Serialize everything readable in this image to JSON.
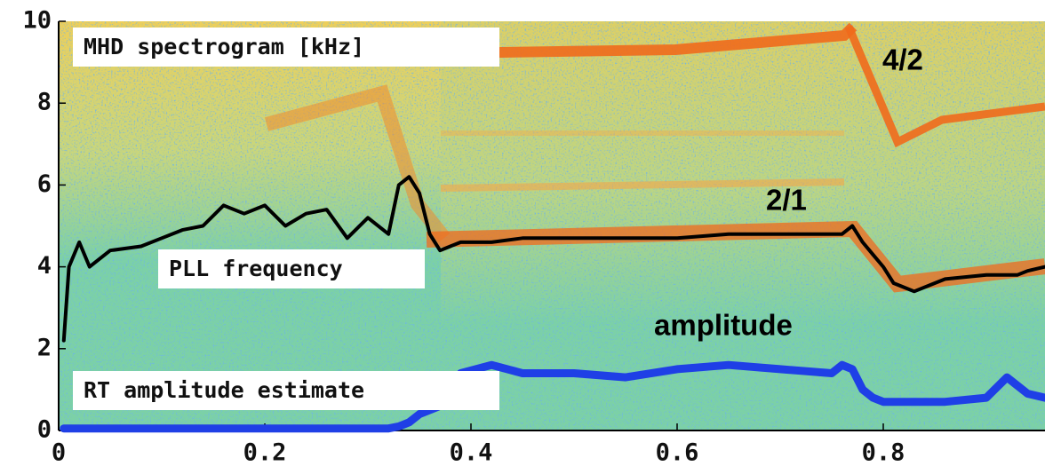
{
  "chart_data": {
    "type": "line",
    "title": "MHD spectrogram [kHz]",
    "x": [
      0.005,
      0.01,
      0.02,
      0.03,
      0.05,
      0.08,
      0.1,
      0.12,
      0.14,
      0.16,
      0.18,
      0.2,
      0.22,
      0.24,
      0.26,
      0.28,
      0.3,
      0.32,
      0.33,
      0.34,
      0.35,
      0.36,
      0.37,
      0.38,
      0.39,
      0.42,
      0.45,
      0.5,
      0.55,
      0.6,
      0.65,
      0.7,
      0.75,
      0.76,
      0.77,
      0.78,
      0.79,
      0.8,
      0.81,
      0.83,
      0.85,
      0.86,
      0.9,
      0.92,
      0.93,
      0.94,
      0.957
    ],
    "series": [
      {
        "name": "PLL frequency",
        "color": "#000000",
        "values": [
          2.2,
          4.0,
          4.6,
          4.0,
          4.4,
          4.5,
          4.7,
          4.9,
          5.0,
          5.5,
          5.3,
          5.5,
          5.0,
          5.3,
          5.4,
          4.7,
          5.2,
          4.8,
          6.0,
          6.2,
          5.8,
          4.8,
          4.4,
          4.5,
          4.6,
          4.6,
          4.7,
          4.7,
          4.7,
          4.7,
          4.8,
          4.8,
          4.8,
          4.8,
          5.0,
          4.6,
          4.3,
          4.0,
          3.6,
          3.4,
          3.6,
          3.7,
          3.8,
          3.8,
          3.8,
          3.9,
          4.0
        ]
      },
      {
        "name": "RT amplitude estimate",
        "color": "#1f3fe6",
        "values": [
          0.05,
          0.05,
          0.05,
          0.05,
          0.05,
          0.05,
          0.05,
          0.05,
          0.05,
          0.05,
          0.05,
          0.05,
          0.05,
          0.05,
          0.05,
          0.05,
          0.05,
          0.05,
          0.1,
          0.2,
          0.4,
          0.5,
          0.6,
          0.9,
          1.4,
          1.6,
          1.4,
          1.4,
          1.3,
          1.5,
          1.6,
          1.5,
          1.4,
          1.6,
          1.5,
          1.0,
          0.8,
          0.7,
          0.7,
          0.7,
          0.7,
          0.7,
          0.8,
          1.3,
          1.1,
          0.9,
          0.8
        ]
      }
    ],
    "annotations": [
      "4/2",
      "2/1",
      "amplitude"
    ],
    "xlim": [
      0,
      0.957
    ],
    "ylim": [
      0,
      10
    ],
    "xticks": [
      0,
      0.2,
      0.4,
      0.6,
      0.8
    ],
    "yticks": [
      0,
      2,
      4,
      6,
      8,
      10
    ]
  }
}
